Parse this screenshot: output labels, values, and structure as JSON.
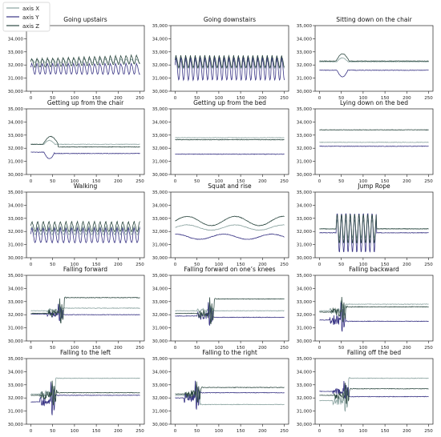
{
  "legend": {
    "placement": "top-left",
    "entries": [
      {
        "label": "axis X",
        "color": "#8aa3a0"
      },
      {
        "label": "axis Y",
        "color": "#3a3585"
      },
      {
        "label": "axis Z",
        "color": "#2e4a42"
      }
    ]
  },
  "chart_data": [
    {
      "type": "line",
      "title": "Going upstairs",
      "ylim": [
        30000,
        35000
      ],
      "xlim": [
        -10,
        260
      ],
      "xticks": [
        0,
        50,
        100,
        150,
        200,
        250
      ],
      "yticks": [
        30000,
        31000,
        32000,
        33000,
        34000,
        35000
      ],
      "ytick_labels": [
        "30,000",
        "31,000",
        "32,000",
        "33,000",
        "34,000",
        "35,000"
      ],
      "grid": false,
      "series": [
        {
          "baseline": 32300,
          "pattern": "periodic",
          "amp": 120,
          "period": 12
        },
        {
          "baseline": 31650,
          "pattern": "periodic",
          "amp": 350,
          "period": 12
        },
        {
          "baseline": 32100,
          "pattern": "periodic",
          "amp": 280,
          "period": 12,
          "drift": 280
        }
      ]
    },
    {
      "type": "line",
      "title": "Going downstairs",
      "ylim": [
        30000,
        35000
      ],
      "xlim": [
        -10,
        260
      ],
      "xticks": [
        0,
        50,
        100,
        150,
        200,
        250
      ],
      "yticks": [
        30000,
        31000,
        32000,
        33000,
        34000,
        35000
      ],
      "ytick_labels": [
        "30,000",
        "31,000",
        "32,000",
        "33,000",
        "34,000",
        "35,000"
      ],
      "grid": false,
      "series": [
        {
          "baseline": 32000,
          "pattern": "periodic",
          "amp": 250,
          "period": 11
        },
        {
          "baseline": 31600,
          "pattern": "periodic",
          "amp": 750,
          "period": 11
        },
        {
          "baseline": 32200,
          "pattern": "periodic",
          "amp": 380,
          "period": 11
        }
      ]
    },
    {
      "type": "line",
      "title": "Sitting down on the chair",
      "ylim": [
        30000,
        35000
      ],
      "xlim": [
        -10,
        260
      ],
      "xticks": [
        0,
        50,
        100,
        150,
        200,
        250
      ],
      "yticks": [
        30000,
        31000,
        32000,
        33000,
        34000,
        35000
      ],
      "ytick_labels": [
        "30,000",
        "31,000",
        "32,000",
        "33,000",
        "34,000",
        "35,000"
      ],
      "grid": false,
      "series": [
        {
          "baseline": 32250,
          "pattern": "event",
          "ev_x": 40,
          "ev_amp": 300,
          "ev_len": 25
        },
        {
          "baseline": 31600,
          "pattern": "event",
          "ev_x": 40,
          "ev_amp": -500,
          "ev_len": 25
        },
        {
          "baseline": 32300,
          "pattern": "event",
          "ev_x": 38,
          "ev_amp": 550,
          "ev_len": 30
        }
      ]
    },
    {
      "type": "line",
      "title": "Getting up from the chair",
      "ylim": [
        30000,
        35000
      ],
      "xlim": [
        -10,
        260
      ],
      "xticks": [
        0,
        50,
        100,
        150,
        200,
        250
      ],
      "yticks": [
        30000,
        31000,
        32000,
        33000,
        34000,
        35000
      ],
      "ytick_labels": [
        "30,000",
        "31,000",
        "32,000",
        "33,000",
        "34,000",
        "35,000"
      ],
      "grid": false,
      "series": [
        {
          "baseline": 32300,
          "pattern": "event",
          "ev_x": 30,
          "ev_amp": 300,
          "ev_len": 25
        },
        {
          "baseline": 31700,
          "pattern": "event",
          "ev_x": 30,
          "ev_amp": -500,
          "ev_len": 25,
          "shift": -100
        },
        {
          "baseline": 32300,
          "pattern": "event",
          "ev_x": 28,
          "ev_amp": 600,
          "ev_len": 35,
          "shift": -200
        }
      ]
    },
    {
      "type": "line",
      "title": "Getting up from the bed",
      "ylim": [
        30000,
        35000
      ],
      "xlim": [
        -10,
        260
      ],
      "xticks": [
        0,
        50,
        100,
        150,
        200,
        250
      ],
      "yticks": [
        30000,
        31000,
        32000,
        33000,
        34000,
        35000
      ],
      "ytick_labels": [
        "30,000",
        "31,000",
        "32,000",
        "33,000",
        "34,000",
        "35,000"
      ],
      "grid": false,
      "series": [
        {
          "baseline": 32800,
          "pattern": "flat"
        },
        {
          "baseline": 31550,
          "pattern": "flat"
        },
        {
          "baseline": 32650,
          "pattern": "flat"
        }
      ]
    },
    {
      "type": "line",
      "title": "Lying down on the bed",
      "ylim": [
        30000,
        35000
      ],
      "xlim": [
        -10,
        260
      ],
      "xticks": [
        0,
        50,
        100,
        150,
        200,
        250
      ],
      "yticks": [
        30000,
        31000,
        32000,
        33000,
        34000,
        35000
      ],
      "ytick_labels": [
        "30,000",
        "31,000",
        "32,000",
        "33,000",
        "34,000",
        "35,000"
      ],
      "grid": false,
      "series": [
        {
          "baseline": 32450,
          "pattern": "flat"
        },
        {
          "baseline": 32150,
          "pattern": "flat"
        },
        {
          "baseline": 33400,
          "pattern": "flat"
        }
      ]
    },
    {
      "type": "line",
      "title": "Walking",
      "ylim": [
        30000,
        35000
      ],
      "xlim": [
        -10,
        260
      ],
      "xticks": [
        0,
        50,
        100,
        150,
        200,
        250
      ],
      "yticks": [
        30000,
        31000,
        32000,
        33000,
        34000,
        35000
      ],
      "ytick_labels": [
        "30,000",
        "31,000",
        "32,000",
        "33,000",
        "34,000",
        "35,000"
      ],
      "grid": false,
      "series": [
        {
          "baseline": 32000,
          "pattern": "periodic",
          "amp": 250,
          "period": 13
        },
        {
          "baseline": 31600,
          "pattern": "periodic",
          "amp": 450,
          "period": 13
        },
        {
          "baseline": 32300,
          "pattern": "periodic",
          "amp": 300,
          "period": 13
        }
      ]
    },
    {
      "type": "line",
      "title": "Squat and rise",
      "ylim": [
        30000,
        35000
      ],
      "xlim": [
        -10,
        260
      ],
      "xticks": [
        0,
        50,
        100,
        150,
        200,
        250
      ],
      "yticks": [
        30000,
        31000,
        32000,
        33000,
        34000,
        35000
      ],
      "ytick_labels": [
        "30,000",
        "31,000",
        "32,000",
        "33,000",
        "34,000",
        "35,000"
      ],
      "grid": false,
      "series": [
        {
          "baseline": 32300,
          "pattern": "slow",
          "amp": 200,
          "period": 110
        },
        {
          "baseline": 31600,
          "pattern": "slow",
          "amp": 200,
          "period": 110,
          "phase": 1.5
        },
        {
          "baseline": 32800,
          "pattern": "slow",
          "amp": 350,
          "period": 110
        }
      ]
    },
    {
      "type": "line",
      "title": "Jump Rope",
      "ylim": [
        30000,
        35000
      ],
      "xlim": [
        -10,
        260
      ],
      "xticks": [
        0,
        50,
        100,
        150,
        200,
        250
      ],
      "yticks": [
        30000,
        31000,
        32000,
        33000,
        34000,
        35000
      ],
      "ytick_labels": [
        "30,000",
        "31,000",
        "32,000",
        "33,000",
        "34,000",
        "35,000"
      ],
      "grid": false,
      "series": [
        {
          "baseline": 32200,
          "pattern": "burst",
          "from": 38,
          "to": 130,
          "amp": 700,
          "period": 10
        },
        {
          "baseline": 31900,
          "pattern": "burst",
          "from": 38,
          "to": 130,
          "amp": 1500,
          "period": 10
        },
        {
          "baseline": 32200,
          "pattern": "burst",
          "from": 38,
          "to": 130,
          "amp": 1100,
          "period": 10
        }
      ]
    },
    {
      "type": "line",
      "title": "Falling forward",
      "ylim": [
        30000,
        35000
      ],
      "xlim": [
        -10,
        260
      ],
      "xticks": [
        0,
        50,
        100,
        150,
        200,
        250
      ],
      "yticks": [
        30000,
        31000,
        32000,
        33000,
        34000,
        35000
      ],
      "ytick_labels": [
        "30,000",
        "31,000",
        "32,000",
        "33,000",
        "34,000",
        "35,000"
      ],
      "grid": false,
      "series": [
        {
          "baseline": 32300,
          "pattern": "fall",
          "fx": 62,
          "amp": 600,
          "after": 32500
        },
        {
          "baseline": 32050,
          "pattern": "fall",
          "fx": 62,
          "amp": 900,
          "after": 32000
        },
        {
          "baseline": 32100,
          "pattern": "fall",
          "fx": 65,
          "amp": 1300,
          "after": 33300
        }
      ]
    },
    {
      "type": "line",
      "title": "Falling forward on one’s knees",
      "ylim": [
        30000,
        35000
      ],
      "xlim": [
        -10,
        260
      ],
      "xticks": [
        0,
        50,
        100,
        150,
        200,
        250
      ],
      "yticks": [
        30000,
        31000,
        32000,
        33000,
        34000,
        35000
      ],
      "ytick_labels": [
        "30,000",
        "31,000",
        "32,000",
        "33,000",
        "34,000",
        "35,000"
      ],
      "grid": false,
      "series": [
        {
          "baseline": 32300,
          "pattern": "fall",
          "fx": 75,
          "amp": 700,
          "after": 32300
        },
        {
          "baseline": 31900,
          "pattern": "fall",
          "fx": 75,
          "amp": 1200,
          "after": 31800
        },
        {
          "baseline": 32100,
          "pattern": "fall",
          "fx": 78,
          "amp": 1400,
          "after": 33200
        }
      ]
    },
    {
      "type": "line",
      "title": "Falling backward",
      "ylim": [
        30000,
        35000
      ],
      "xlim": [
        -10,
        260
      ],
      "xticks": [
        0,
        50,
        100,
        150,
        200,
        250
      ],
      "yticks": [
        30000,
        31000,
        32000,
        33000,
        34000,
        35000
      ],
      "ytick_labels": [
        "30,000",
        "31,000",
        "32,000",
        "33,000",
        "34,000",
        "35,000"
      ],
      "grid": false,
      "series": [
        {
          "baseline": 32300,
          "pattern": "fall",
          "fx": 48,
          "amp": 900,
          "after": 32800
        },
        {
          "baseline": 31600,
          "pattern": "fall",
          "fx": 48,
          "amp": 1500,
          "after": 31500
        },
        {
          "baseline": 32200,
          "pattern": "fall",
          "fx": 50,
          "amp": 1300,
          "after": 32600
        }
      ]
    },
    {
      "type": "line",
      "title": "Falling to the left",
      "ylim": [
        30000,
        35000
      ],
      "xlim": [
        -10,
        260
      ],
      "xticks": [
        0,
        50,
        100,
        150,
        200,
        250
      ],
      "yticks": [
        30000,
        31000,
        32000,
        33000,
        34000,
        35000
      ],
      "ytick_labels": [
        "30,000",
        "31,000",
        "32,000",
        "33,000",
        "34,000",
        "35,000"
      ],
      "grid": false,
      "series": [
        {
          "baseline": 32300,
          "pattern": "fall",
          "fx": 45,
          "amp": 1100,
          "after": 33500
        },
        {
          "baseline": 31700,
          "pattern": "fall",
          "fx": 45,
          "amp": 1700,
          "after": 32200
        },
        {
          "baseline": 32200,
          "pattern": "fall",
          "fx": 48,
          "amp": 1300,
          "after": 32400
        }
      ]
    },
    {
      "type": "line",
      "title": "Falling to the right",
      "ylim": [
        30000,
        35000
      ],
      "xlim": [
        -10,
        260
      ],
      "xticks": [
        0,
        50,
        100,
        150,
        200,
        250
      ],
      "yticks": [
        30000,
        31000,
        32000,
        33000,
        34000,
        35000
      ],
      "ytick_labels": [
        "30,000",
        "31,000",
        "32,000",
        "33,000",
        "34,000",
        "35,000"
      ],
      "grid": false,
      "series": [
        {
          "baseline": 32200,
          "pattern": "fall",
          "fx": 45,
          "amp": 1200,
          "after": 31500
        },
        {
          "baseline": 32000,
          "pattern": "fall",
          "fx": 45,
          "amp": 1500,
          "after": 32400
        },
        {
          "baseline": 32300,
          "pattern": "fall",
          "fx": 48,
          "amp": 1100,
          "after": 32800
        }
      ]
    },
    {
      "type": "line",
      "title": "Falling off the bed",
      "ylim": [
        30000,
        35000
      ],
      "xlim": [
        -10,
        260
      ],
      "xticks": [
        0,
        50,
        100,
        150,
        200,
        250
      ],
      "yticks": [
        30000,
        31000,
        32000,
        33000,
        34000,
        35000
      ],
      "ytick_labels": [
        "30,000",
        "31,000",
        "32,000",
        "33,000",
        "34,000",
        "35,000"
      ],
      "grid": false,
      "series": [
        {
          "baseline": 31800,
          "pattern": "fall",
          "fx": 55,
          "amp": 1400,
          "after": 33500
        },
        {
          "baseline": 32500,
          "pattern": "fall",
          "fx": 55,
          "amp": 900,
          "after": 32100
        },
        {
          "baseline": 32200,
          "pattern": "fall",
          "fx": 58,
          "amp": 1100,
          "after": 32700
        }
      ]
    }
  ]
}
